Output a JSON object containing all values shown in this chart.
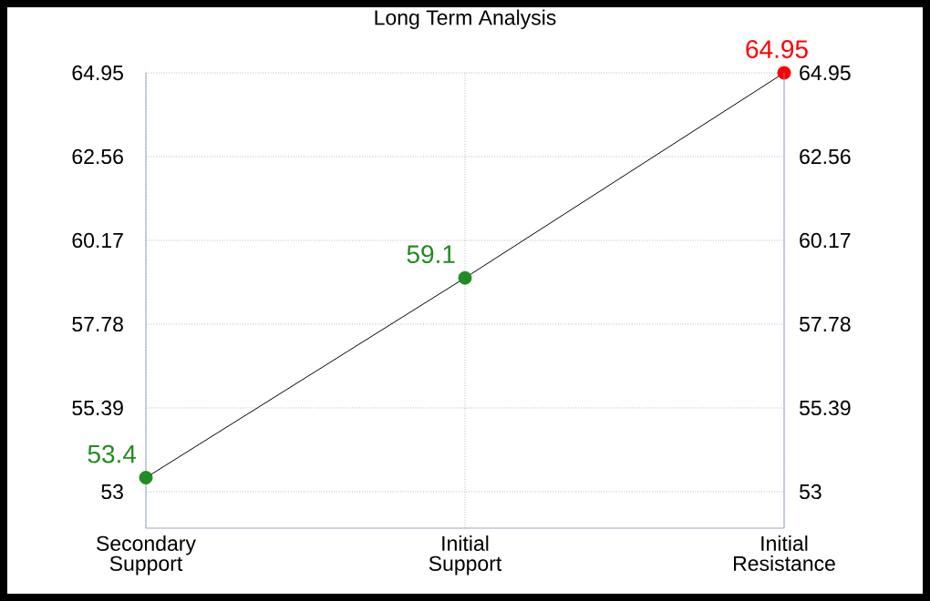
{
  "chart_data": {
    "type": "line",
    "title": "Long Term Analysis",
    "categories": [
      "Secondary Support",
      "Initial Support",
      "Initial Resistance"
    ],
    "values": [
      53.4,
      59.1,
      64.95
    ],
    "color": "#000000",
    "colors": [
      "#228b22",
      "#228b22",
      "#ff0000"
    ],
    "marker": "circle",
    "data_labels": true,
    "grid": true,
    "ylim": [
      51.96,
      64.95
    ],
    "yticks": [
      53,
      55.39,
      57.78,
      60.17,
      62.56,
      64.95
    ],
    "y2lim": [
      51.96,
      64.95
    ],
    "y2ticks": [
      53,
      55.39,
      57.78,
      60.17,
      62.56,
      64.95
    ]
  }
}
